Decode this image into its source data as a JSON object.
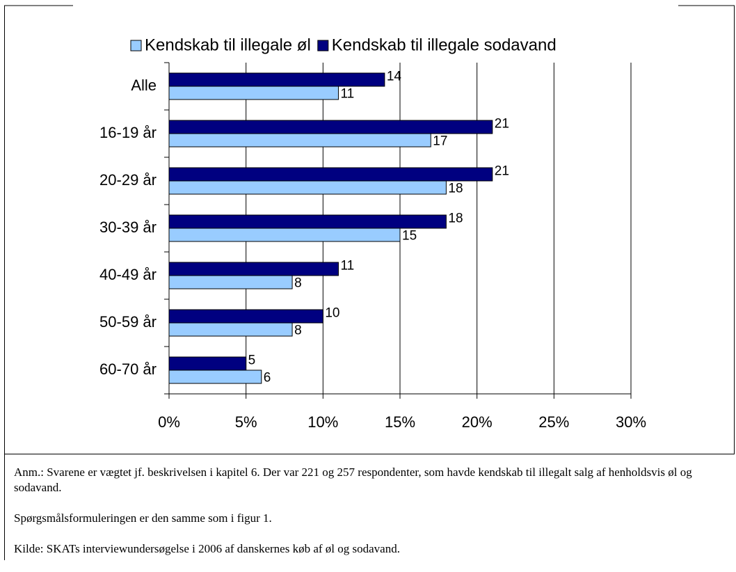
{
  "chart_data": {
    "type": "barh",
    "categories": [
      "Alle",
      "16-19 år",
      "20-29 år",
      "30-39 år",
      "40-49 år",
      "50-59 år",
      "60-70 år"
    ],
    "series": [
      {
        "name": "Kendskab til illegale øl",
        "color": "#99ccff",
        "values": [
          11,
          17,
          18,
          15,
          8,
          8,
          6
        ]
      },
      {
        "name": "Kendskab til illegale sodavand",
        "color": "#000080",
        "values": [
          14,
          21,
          21,
          18,
          11,
          10,
          5
        ]
      }
    ],
    "xlim": [
      0,
      30
    ],
    "xticks": [
      {
        "value": 0,
        "label": "0%"
      },
      {
        "value": 5,
        "label": "5%"
      },
      {
        "value": 10,
        "label": "10%"
      },
      {
        "value": 15,
        "label": "15%"
      },
      {
        "value": 20,
        "label": "20%"
      },
      {
        "value": 25,
        "label": "25%"
      },
      {
        "value": 30,
        "label": "30%"
      }
    ],
    "grid": true,
    "legend": "top"
  },
  "notes": [
    "Anm.: Svarene er vægtet jf. beskrivelsen i kapitel 6. Der var 221 og 257 respondenter, som havde kendskab til illegalt salg af henholdsvis øl og sodavand.",
    "Spørgsmålsformuleringen er den samme som i figur 1.",
    "Kilde: SKATs interviewundersøgelse i 2006 af danskernes køb af øl og sodavand."
  ]
}
